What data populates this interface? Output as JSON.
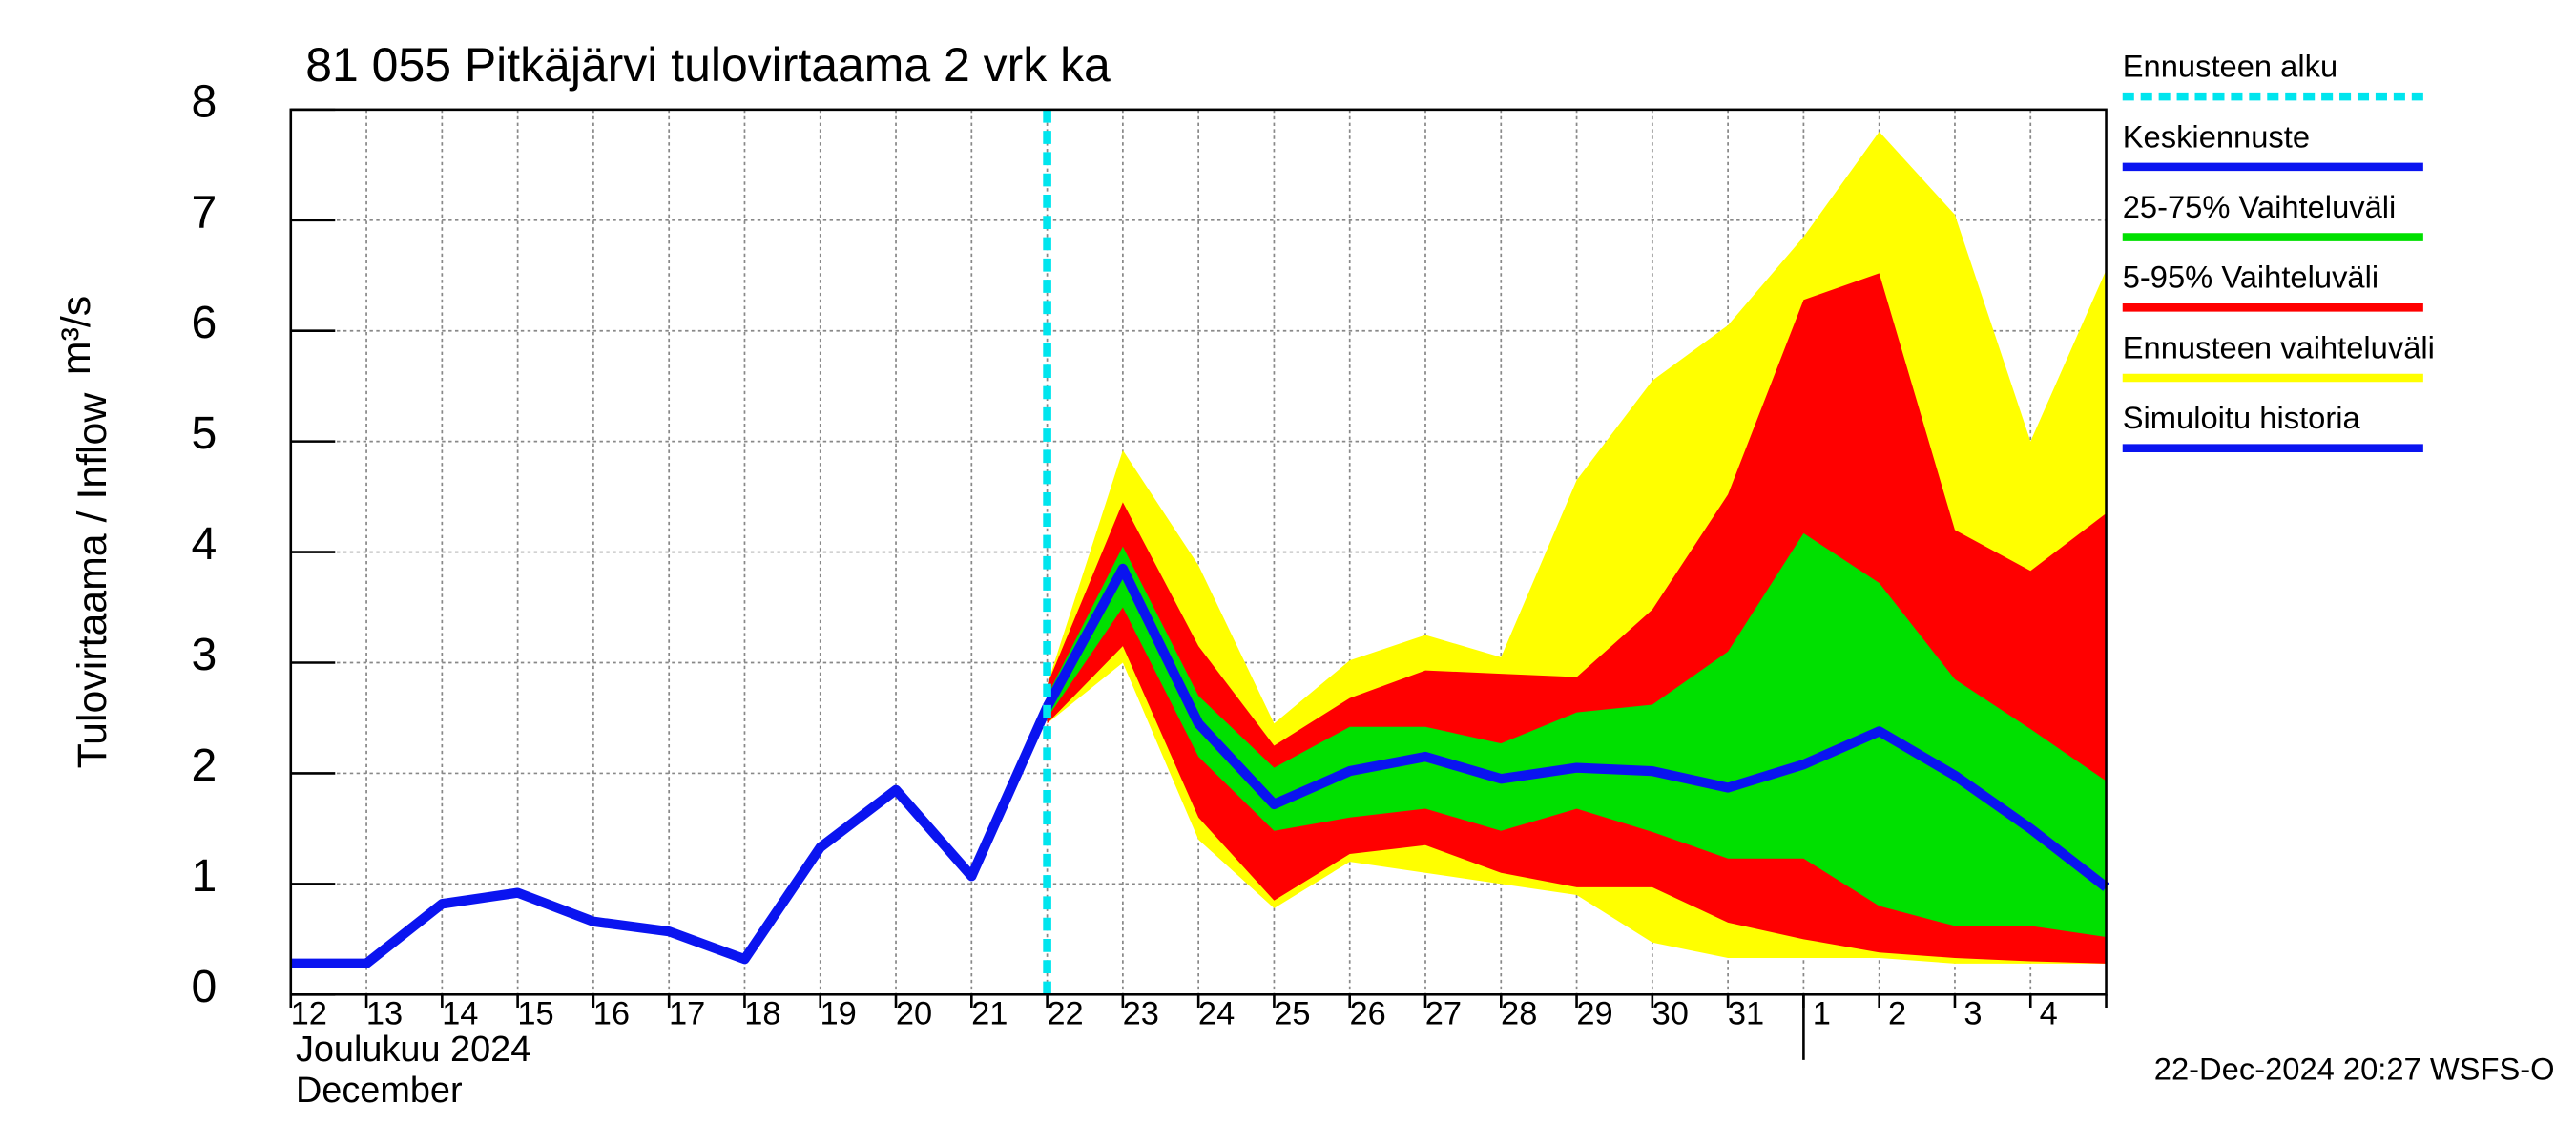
{
  "chart_data": {
    "type": "line",
    "title": "81 055 Pitkäjärvi tulovirtaama 2 vrk ka",
    "ylabel": "Tulovirtaama / Inflow",
    "yunit": "m³/s",
    "month_label": "Joulukuu  2024",
    "month_label_en": "December",
    "footer": "22-Dec-2024 20:27 WSFS-O",
    "categories": [
      "12",
      "13",
      "14",
      "15",
      "16",
      "17",
      "18",
      "19",
      "20",
      "21",
      "22",
      "23",
      "24",
      "25",
      "26",
      "27",
      "28",
      "29",
      "30",
      "31",
      "1",
      "2",
      "3",
      "4",
      null
    ],
    "month_break": 20,
    "ylim": [
      0,
      8
    ],
    "yticks": [
      0,
      1,
      2,
      3,
      4,
      5,
      6,
      7,
      8
    ],
    "grid": true,
    "forecast_start": {
      "name": "Ennusteen alku",
      "x": 10,
      "color": "#00e5ee"
    },
    "series": [
      {
        "name": "Keskiennuste",
        "kind": "line",
        "color": "#0a14f0",
        "values": [
          null,
          null,
          null,
          null,
          null,
          null,
          null,
          null,
          null,
          null,
          2.6,
          3.85,
          2.45,
          1.72,
          2.02,
          2.15,
          1.95,
          2.05,
          2.02,
          1.87,
          2.08,
          2.38,
          1.98,
          1.5,
          0.97
        ]
      },
      {
        "name": "25-75% Vaihteluväli",
        "kind": "band",
        "color": "#00e000",
        "low": [
          null,
          null,
          null,
          null,
          null,
          null,
          null,
          null,
          null,
          null,
          2.5,
          3.5,
          2.15,
          1.48,
          1.6,
          1.68,
          1.48,
          1.68,
          1.47,
          1.23,
          1.23,
          0.8,
          0.62,
          0.62,
          0.52
        ],
        "high": [
          null,
          null,
          null,
          null,
          null,
          null,
          null,
          null,
          null,
          null,
          2.7,
          4.05,
          2.7,
          2.05,
          2.42,
          2.42,
          2.27,
          2.55,
          2.62,
          3.1,
          4.17,
          3.72,
          2.85,
          2.4,
          1.93
        ]
      },
      {
        "name": "5-95% Vaihteluväli",
        "kind": "band",
        "color": "#ff0000",
        "low": [
          null,
          null,
          null,
          null,
          null,
          null,
          null,
          null,
          null,
          null,
          2.45,
          3.15,
          1.6,
          0.85,
          1.27,
          1.35,
          1.1,
          0.97,
          0.97,
          0.65,
          0.5,
          0.38,
          0.33,
          0.3,
          0.28
        ],
        "high": [
          null,
          null,
          null,
          null,
          null,
          null,
          null,
          null,
          null,
          null,
          2.8,
          4.45,
          3.15,
          2.25,
          2.68,
          2.93,
          2.9,
          2.87,
          3.48,
          4.52,
          6.28,
          6.52,
          4.2,
          3.83,
          4.35
        ]
      },
      {
        "name": "Ennusteen vaihteluväli",
        "kind": "band",
        "color": "#ffff00",
        "low": [
          null,
          null,
          null,
          null,
          null,
          null,
          null,
          null,
          null,
          null,
          2.45,
          3.0,
          1.4,
          0.78,
          1.2,
          1.1,
          1.0,
          0.9,
          0.47,
          0.33,
          0.33,
          0.33,
          0.28,
          0.28,
          0.28
        ],
        "high": [
          null,
          null,
          null,
          null,
          null,
          null,
          null,
          null,
          null,
          null,
          2.8,
          4.92,
          3.88,
          2.45,
          3.02,
          3.25,
          3.05,
          4.65,
          5.55,
          6.05,
          6.85,
          7.8,
          7.05,
          5.0,
          6.55
        ]
      },
      {
        "name": "Simuloitu historia",
        "kind": "line",
        "color": "#0a14f0",
        "values": [
          0.28,
          0.28,
          0.82,
          0.92,
          0.66,
          0.57,
          0.32,
          1.33,
          1.85,
          1.07,
          2.6,
          null,
          null,
          null,
          null,
          null,
          null,
          null,
          null,
          null,
          null,
          null,
          null,
          null,
          null
        ]
      }
    ]
  }
}
